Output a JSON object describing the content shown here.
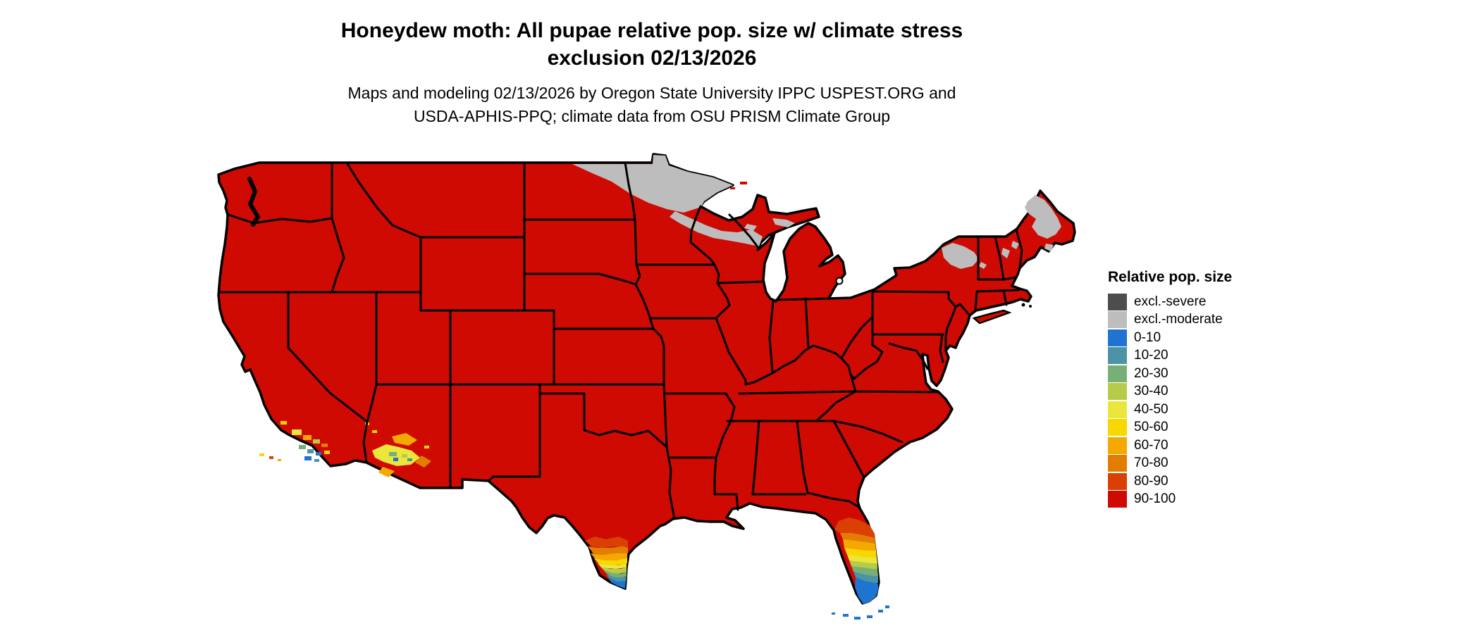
{
  "title": {
    "line1": "Honeydew moth: All pupae relative pop. size w/ climate stress",
    "line2": "exclusion 02/13/2026"
  },
  "subtitle": {
    "line1": "Maps and modeling 02/13/2026 by Oregon State University IPPC USPEST.ORG and",
    "line2": "USDA-APHIS-PPQ; climate data from OSU PRISM Climate Group"
  },
  "legend": {
    "title": "Relative pop. size",
    "items": [
      {
        "key": "excl-severe",
        "label": "excl.-severe",
        "color": "#4D4D4D"
      },
      {
        "key": "excl-moderate",
        "label": "excl.-moderate",
        "color": "#BDBDBD"
      },
      {
        "key": "0-10",
        "label": "0-10",
        "color": "#1E74D0"
      },
      {
        "key": "10-20",
        "label": "10-20",
        "color": "#4C93A6"
      },
      {
        "key": "20-30",
        "label": "20-30",
        "color": "#77B076"
      },
      {
        "key": "30-40",
        "label": "30-40",
        "color": "#B6CC48"
      },
      {
        "key": "40-50",
        "label": "40-50",
        "color": "#EBE63B"
      },
      {
        "key": "50-60",
        "label": "50-60",
        "color": "#F8D702"
      },
      {
        "key": "60-70",
        "label": "60-70",
        "color": "#F3A802"
      },
      {
        "key": "70-80",
        "label": "70-80",
        "color": "#E37D02"
      },
      {
        "key": "80-90",
        "label": "80-90",
        "color": "#DA4004"
      },
      {
        "key": "90-100",
        "label": "90-100",
        "color": "#CE0A02"
      }
    ]
  },
  "map": {
    "type": "choropleth-us-lower48",
    "base_class": "90-100",
    "border_color": "#000000",
    "background": "#ffffff",
    "regions": [
      {
        "name": "northern-north-dakota-minnesota",
        "class": "excl-moderate"
      },
      {
        "name": "northern-wisconsin",
        "class": "excl-moderate"
      },
      {
        "name": "upper-peninsula-michigan-patches",
        "class": "excl-moderate"
      },
      {
        "name": "northern-maine",
        "class": "excl-moderate"
      },
      {
        "name": "adirondacks-new-york",
        "class": "excl-moderate"
      },
      {
        "name": "white-mountains-new-hampshire-vermont",
        "class": "excl-moderate"
      },
      {
        "name": "south-florida-gradient",
        "classes": [
          "80-90",
          "70-80",
          "60-70",
          "50-60",
          "40-50",
          "30-40",
          "20-30",
          "10-20",
          "0-10"
        ]
      },
      {
        "name": "florida-keys",
        "class": "0-10"
      },
      {
        "name": "south-texas-gradient",
        "classes": [
          "80-90",
          "70-80",
          "60-70",
          "50-60",
          "40-50",
          "30-40",
          "20-30",
          "10-20",
          "0-10"
        ]
      },
      {
        "name": "southern-california-coast-mixed",
        "classes": [
          "70-80",
          "60-70",
          "50-60",
          "40-50",
          "30-40",
          "20-30",
          "10-20",
          "0-10"
        ]
      },
      {
        "name": "southern-arizona-mixed",
        "classes": [
          "70-80",
          "60-70",
          "50-60",
          "40-50",
          "30-40",
          "20-30",
          "10-20",
          "0-10"
        ]
      }
    ]
  }
}
